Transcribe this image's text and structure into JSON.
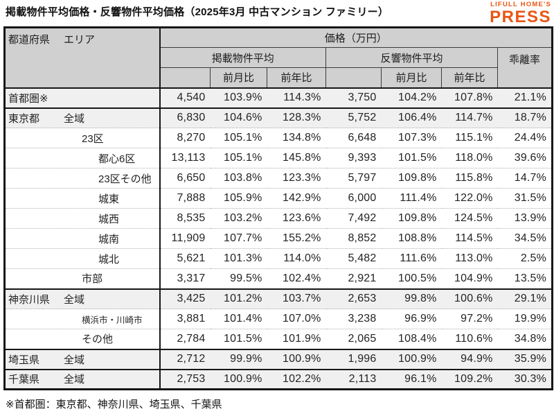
{
  "title": "掲載物件平均価格・反響物件平均価格（2025年3月 中古マンション ファミリー）",
  "logo": {
    "line1": "LIFULL HOME'S",
    "line2": "PRESS"
  },
  "footnote": "※首都圏：東京都、神奈川県、埼玉県、千葉県",
  "colors": {
    "accent": "#ea5514",
    "header_bg": "#d0d0d0",
    "group_row_bg": "#f0f0f0",
    "border_dark": "#161616"
  },
  "table_header": {
    "region": "都道府県",
    "area": "エリア",
    "price_unit": "価格（万円）",
    "listed_group": "掲載物件平均",
    "inquiry_group": "反響物件平均",
    "gap": "乖離率",
    "mom": "前月比",
    "yoy": "前年比"
  },
  "chart_data": {
    "type": "table",
    "title": "掲載物件平均価格・反響物件平均価格（2025年3月 中古マンション ファミリー）",
    "unit": "価格（万円）",
    "columns": [
      "都道府県",
      "エリア",
      "掲載物件平均 価格（万円）",
      "掲載 前月比",
      "掲載 前年比",
      "反響物件平均 価格（万円）",
      "反響 前月比",
      "反響 前年比",
      "乖離率"
    ],
    "rows": [
      {
        "pref": "首都圏※",
        "area": "",
        "indent": 0,
        "group_start": true,
        "listed": "4,540",
        "listed_mom": "103.9%",
        "listed_yoy": "114.3%",
        "inquiry": "3,750",
        "inquiry_mom": "104.2%",
        "inquiry_yoy": "107.8%",
        "gap": "21.1%"
      },
      {
        "pref": "東京都",
        "area": "全域",
        "indent": 1,
        "group_start": true,
        "listed": "6,830",
        "listed_mom": "104.6%",
        "listed_yoy": "128.3%",
        "inquiry": "5,752",
        "inquiry_mom": "106.4%",
        "inquiry_yoy": "114.7%",
        "gap": "18.7%"
      },
      {
        "pref": "",
        "area": "23区",
        "indent": 2,
        "group_start": false,
        "listed": "8,270",
        "listed_mom": "105.1%",
        "listed_yoy": "134.8%",
        "inquiry": "6,648",
        "inquiry_mom": "107.3%",
        "inquiry_yoy": "115.1%",
        "gap": "24.4%"
      },
      {
        "pref": "",
        "area": "都心6区",
        "indent": 3,
        "group_start": false,
        "listed": "13,113",
        "listed_mom": "105.1%",
        "listed_yoy": "145.8%",
        "inquiry": "9,393",
        "inquiry_mom": "101.5%",
        "inquiry_yoy": "118.0%",
        "gap": "39.6%"
      },
      {
        "pref": "",
        "area": "23区その他",
        "indent": 3,
        "group_start": false,
        "listed": "6,650",
        "listed_mom": "103.8%",
        "listed_yoy": "123.3%",
        "inquiry": "5,797",
        "inquiry_mom": "109.8%",
        "inquiry_yoy": "115.8%",
        "gap": "14.7%"
      },
      {
        "pref": "",
        "area": "城東",
        "indent": 3,
        "group_start": false,
        "listed": "7,888",
        "listed_mom": "105.9%",
        "listed_yoy": "142.9%",
        "inquiry": "6,000",
        "inquiry_mom": "111.4%",
        "inquiry_yoy": "122.0%",
        "gap": "31.5%"
      },
      {
        "pref": "",
        "area": "城西",
        "indent": 3,
        "group_start": false,
        "listed": "8,535",
        "listed_mom": "103.2%",
        "listed_yoy": "123.6%",
        "inquiry": "7,492",
        "inquiry_mom": "109.8%",
        "inquiry_yoy": "124.5%",
        "gap": "13.9%"
      },
      {
        "pref": "",
        "area": "城南",
        "indent": 3,
        "group_start": false,
        "listed": "11,909",
        "listed_mom": "107.7%",
        "listed_yoy": "155.2%",
        "inquiry": "8,852",
        "inquiry_mom": "108.8%",
        "inquiry_yoy": "114.5%",
        "gap": "34.5%"
      },
      {
        "pref": "",
        "area": "城北",
        "indent": 3,
        "group_start": false,
        "listed": "5,621",
        "listed_mom": "101.3%",
        "listed_yoy": "114.0%",
        "inquiry": "5,482",
        "inquiry_mom": "111.6%",
        "inquiry_yoy": "113.0%",
        "gap": "2.5%"
      },
      {
        "pref": "",
        "area": "市部",
        "indent": 2,
        "group_start": false,
        "listed": "3,317",
        "listed_mom": "99.5%",
        "listed_yoy": "102.4%",
        "inquiry": "2,921",
        "inquiry_mom": "100.5%",
        "inquiry_yoy": "104.9%",
        "gap": "13.5%"
      },
      {
        "pref": "神奈川県",
        "area": "全域",
        "indent": 1,
        "group_start": true,
        "listed": "3,425",
        "listed_mom": "101.2%",
        "listed_yoy": "103.7%",
        "inquiry": "2,653",
        "inquiry_mom": "99.8%",
        "inquiry_yoy": "100.6%",
        "gap": "29.1%"
      },
      {
        "pref": "",
        "area": "横浜市・川崎市",
        "indent": 2,
        "small": true,
        "group_start": false,
        "listed": "3,881",
        "listed_mom": "101.4%",
        "listed_yoy": "107.0%",
        "inquiry": "3,238",
        "inquiry_mom": "96.9%",
        "inquiry_yoy": "97.2%",
        "gap": "19.9%"
      },
      {
        "pref": "",
        "area": "その他",
        "indent": 2,
        "group_start": false,
        "listed": "2,784",
        "listed_mom": "101.5%",
        "listed_yoy": "101.9%",
        "inquiry": "2,065",
        "inquiry_mom": "108.4%",
        "inquiry_yoy": "110.6%",
        "gap": "34.8%"
      },
      {
        "pref": "埼玉県",
        "area": "全域",
        "indent": 1,
        "group_start": true,
        "listed": "2,712",
        "listed_mom": "99.9%",
        "listed_yoy": "100.9%",
        "inquiry": "1,996",
        "inquiry_mom": "100.9%",
        "inquiry_yoy": "94.9%",
        "gap": "35.9%"
      },
      {
        "pref": "千葉県",
        "area": "全域",
        "indent": 1,
        "group_start": true,
        "listed": "2,753",
        "listed_mom": "100.9%",
        "listed_yoy": "102.2%",
        "inquiry": "2,113",
        "inquiry_mom": "96.1%",
        "inquiry_yoy": "109.2%",
        "gap": "30.3%"
      }
    ]
  }
}
